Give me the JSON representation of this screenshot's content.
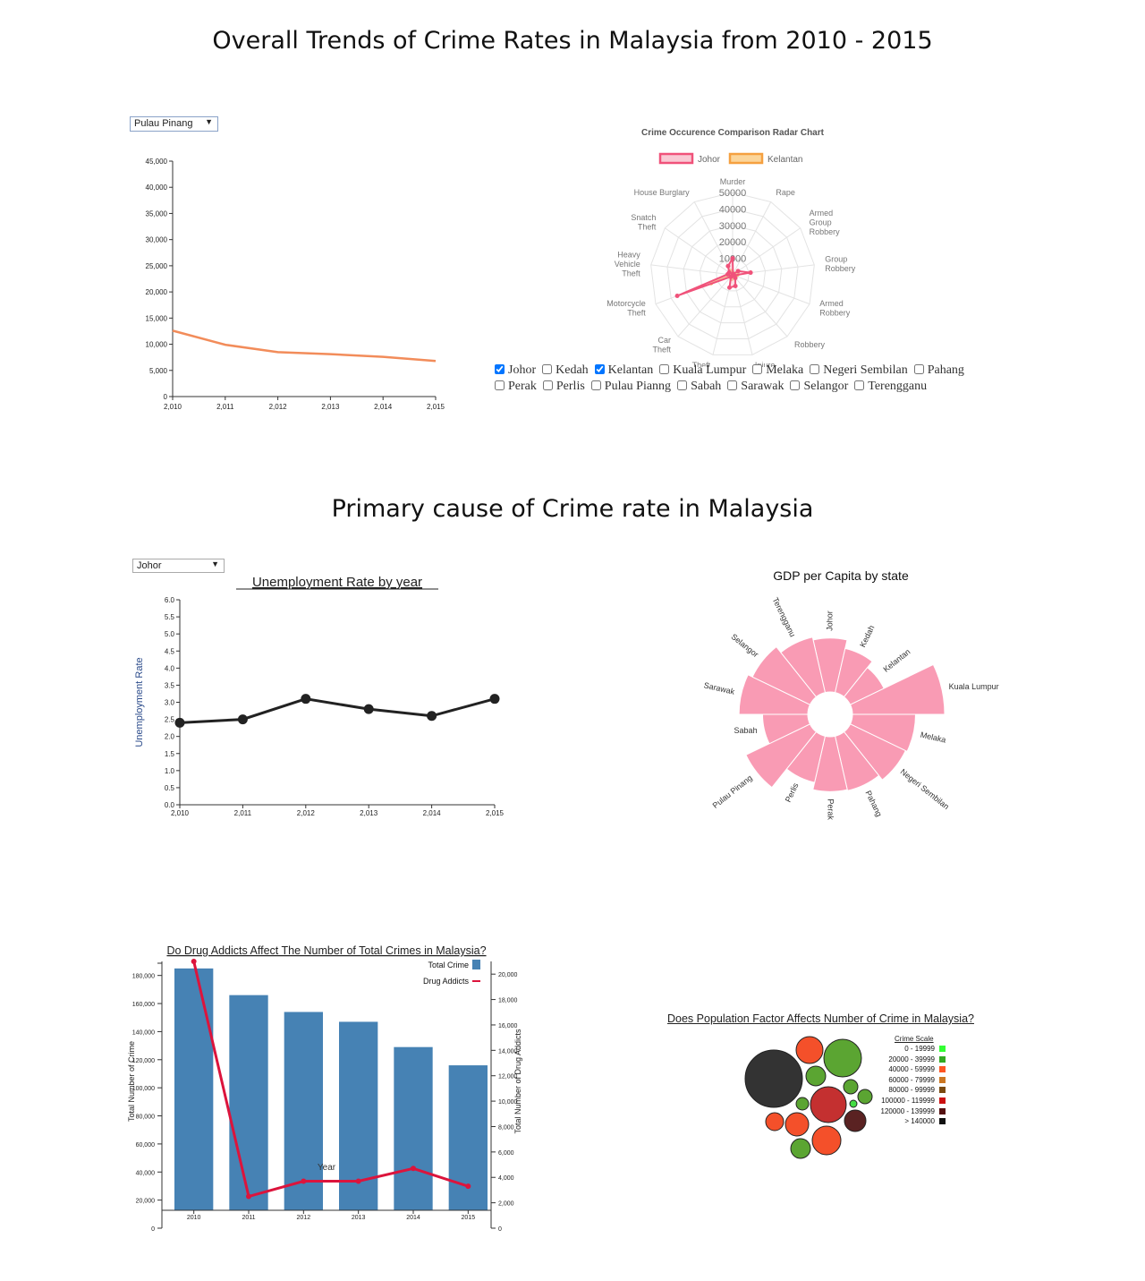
{
  "page": {
    "title1": "Overall Trends of Crime Rates in Malaysia from 2010 - 2015",
    "title2": "Primary cause of Crime rate in Malaysia"
  },
  "line_select": {
    "value": "Pulau Pinang"
  },
  "unemp_select": {
    "value": "Johor"
  },
  "radar_checkboxes": {
    "row1": [
      {
        "label": "Johor",
        "checked": true
      },
      {
        "label": "Kedah",
        "checked": false
      },
      {
        "label": "Kelantan",
        "checked": true
      },
      {
        "label": "Kuala Lumpur",
        "checked": false
      },
      {
        "label": "Melaka",
        "checked": false
      },
      {
        "label": "Negeri Sembilan",
        "checked": false
      },
      {
        "label": "Pahang",
        "checked": false
      }
    ],
    "row2": [
      {
        "label": "Perak",
        "checked": false
      },
      {
        "label": "Perlis",
        "checked": false
      },
      {
        "label": "Pulau Pianng",
        "checked": false
      },
      {
        "label": "Sabah",
        "checked": false
      },
      {
        "label": "Sarawak",
        "checked": false
      },
      {
        "label": "Selangor",
        "checked": false
      },
      {
        "label": "Terengganu",
        "checked": false
      }
    ]
  },
  "population": {
    "title": "Does Population Factor Affects Number of Crime in Malaysia?",
    "legend_title": "Crime Scale",
    "legend": [
      {
        "label": "0 - 19999",
        "color": "#33ff33"
      },
      {
        "label": "20000 - 39999",
        "color": "#33aa22"
      },
      {
        "label": "40000 - 59999",
        "color": "#ff5522"
      },
      {
        "label": "60000 - 79999",
        "color": "#cc7722"
      },
      {
        "label": "80000 - 99999",
        "color": "#7a4a10"
      },
      {
        "label": "100000 - 119999",
        "color": "#cc1111"
      },
      {
        "label": "120000 - 139999",
        "color": "#551111"
      },
      {
        "label": "> 140000",
        "color": "#111111"
      }
    ]
  },
  "chart_data": [
    {
      "id": "overall-line",
      "type": "line",
      "x": [
        "2,010",
        "2,011",
        "2,012",
        "2,013",
        "2,014",
        "2,015"
      ],
      "values": [
        12600,
        9900,
        8500,
        8100,
        7600,
        6800
      ],
      "yticks": [
        "0",
        "5,000",
        "10,000",
        "15,000",
        "20,000",
        "25,000",
        "30,000",
        "35,000",
        "40,000",
        "45,000"
      ],
      "ylim": [
        0,
        45000
      ],
      "color": "#f28c5a"
    },
    {
      "id": "radar",
      "type": "radar",
      "title": "Crime Occurence Comparison Radar Chart",
      "axes": [
        "Murder",
        "Rape",
        "Armed Group Robbery",
        "Group Robbery",
        "Armed Robbery",
        "Robbery",
        "Injure",
        "Theft",
        "Car Theft",
        "Motorcycle Theft",
        "Heavy Vehicle Theft",
        "Snatch Theft",
        "House Burglary"
      ],
      "rings": [
        "10000",
        "20000",
        "30000",
        "40000",
        "50000"
      ],
      "max": 50000,
      "series": [
        {
          "name": "Johor",
          "color": "#f0527a",
          "fill": "#f9c9d4",
          "values": [
            10000,
            500,
            4000,
            11000,
            1000,
            2500,
            7000,
            8000,
            1500,
            36000,
            3000,
            2500,
            6000
          ]
        },
        {
          "name": "Kelantan",
          "color": "#f5a040",
          "fill": "#fbd59a",
          "values": [
            500,
            300,
            1000,
            3000,
            500,
            2000,
            1500,
            2500,
            500,
            14000,
            1000,
            1500,
            2500
          ]
        }
      ]
    },
    {
      "id": "unemployment",
      "type": "line",
      "title": "Unemployment Rate by year",
      "ylabel": "Unemployment Rate",
      "x": [
        "2,010",
        "2,011",
        "2,012",
        "2,013",
        "2,014",
        "2,015"
      ],
      "values": [
        2.4,
        2.5,
        3.1,
        2.8,
        2.6,
        3.1
      ],
      "yticks": [
        "0.0",
        "0.5",
        "1.0",
        "1.5",
        "2.0",
        "2.5",
        "3.0",
        "3.5",
        "4.0",
        "4.5",
        "5.0",
        "5.5",
        "6.0"
      ],
      "ylim": [
        0,
        6
      ],
      "color": "#222222"
    },
    {
      "id": "gdp",
      "type": "radial-bar",
      "title": "GDP per Capita by state",
      "color": "#f99bb4",
      "categories": [
        "Johor",
        "Kedah",
        "Kelantan",
        "Kuala Lumpur",
        "Melaka",
        "Negeri Sembilan",
        "Pahang",
        "Perak",
        "Perlis",
        "Pulau Pinang",
        "Sabah",
        "Sarawak",
        "Selangor",
        "Terengganu"
      ],
      "values": [
        27000,
        19000,
        13000,
        79000,
        37000,
        35000,
        29000,
        28000,
        21000,
        47000,
        19000,
        44000,
        38000,
        30000
      ]
    },
    {
      "id": "drug",
      "type": "bar",
      "title": "Do Drug Addicts Affect The Number of Total Crimes in Malaysia?",
      "xlabel": "Year",
      "ylabel": "Total Number of Crime",
      "y2label": "Total Number of Drug Addicts",
      "categories": [
        "2010",
        "2011",
        "2012",
        "2013",
        "2014",
        "2015"
      ],
      "series": [
        {
          "name": "Total Crime",
          "type": "bar",
          "color": "#4682b4",
          "values": [
            185000,
            166000,
            154000,
            147000,
            129000,
            116000
          ]
        },
        {
          "name": "Drug Addicts",
          "type": "line",
          "color": "#dc143c",
          "values": [
            21000,
            2500,
            3700,
            3700,
            4700,
            3300
          ]
        }
      ],
      "yticks": [
        "20,000",
        "40,000",
        "60,000",
        "80,000",
        "100,000",
        "120,000",
        "140,000",
        "160,000",
        "180,000"
      ],
      "ylim": [
        0,
        190000
      ],
      "y2ticks": [
        "0",
        "2,000",
        "4,000",
        "6,000",
        "8,000",
        "10,000",
        "12,000",
        "14,000",
        "16,000",
        "18,000",
        "20,000"
      ],
      "y2lim": [
        0,
        21000
      ]
    }
  ]
}
